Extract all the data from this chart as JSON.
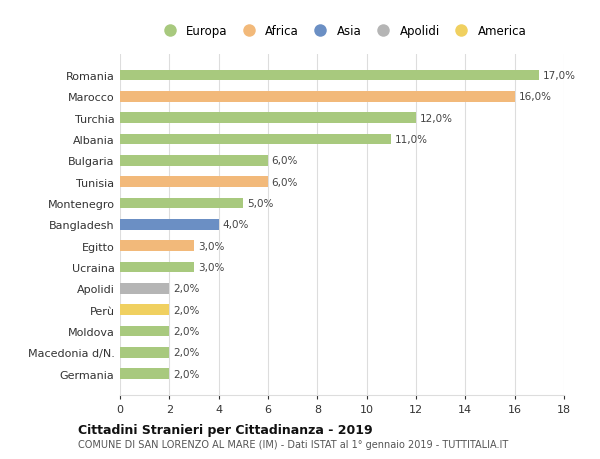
{
  "categories": [
    "Romania",
    "Marocco",
    "Turchia",
    "Albania",
    "Bulgaria",
    "Tunisia",
    "Montenegro",
    "Bangladesh",
    "Egitto",
    "Ucraina",
    "Apolidi",
    "Perù",
    "Moldova",
    "Macedonia d/N.",
    "Germania"
  ],
  "values": [
    17.0,
    16.0,
    12.0,
    11.0,
    6.0,
    6.0,
    5.0,
    4.0,
    3.0,
    3.0,
    2.0,
    2.0,
    2.0,
    2.0,
    2.0
  ],
  "continents": [
    "Europa",
    "Africa",
    "Europa",
    "Europa",
    "Europa",
    "Africa",
    "Europa",
    "Asia",
    "Africa",
    "Europa",
    "Apolidi",
    "America",
    "Europa",
    "Europa",
    "Europa"
  ],
  "colors": {
    "Europa": "#a8c97e",
    "Africa": "#f2b97a",
    "Asia": "#6b8fc4",
    "Apolidi": "#b5b5b5",
    "America": "#f0d060"
  },
  "legend_order": [
    "Europa",
    "Africa",
    "Asia",
    "Apolidi",
    "America"
  ],
  "xlim": [
    0,
    18
  ],
  "xticks": [
    0,
    2,
    4,
    6,
    8,
    10,
    12,
    14,
    16,
    18
  ],
  "title": "Cittadini Stranieri per Cittadinanza - 2019",
  "subtitle": "COMUNE DI SAN LORENZO AL MARE (IM) - Dati ISTAT al 1° gennaio 2019 - TUTTITALIA.IT",
  "background_color": "#ffffff",
  "grid_color": "#dddddd"
}
